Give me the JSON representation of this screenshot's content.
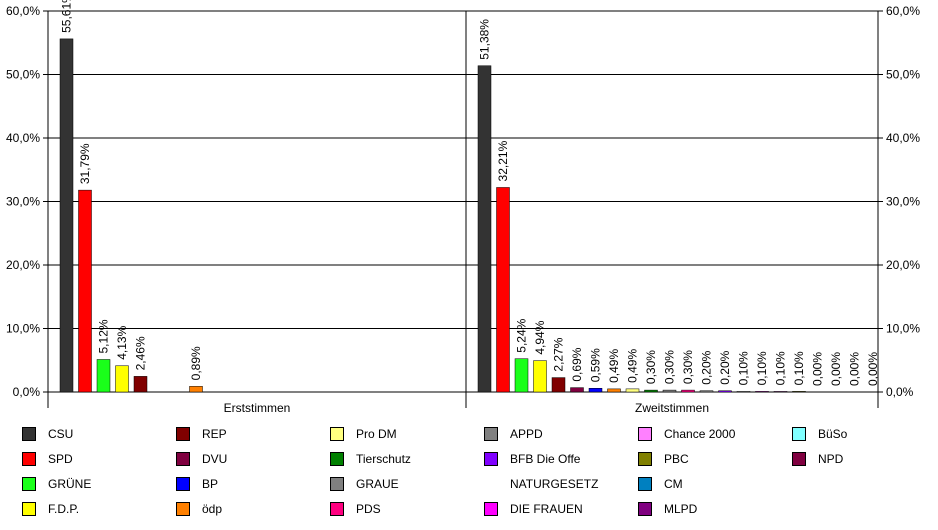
{
  "chart_data": {
    "type": "bar",
    "ylim": [
      0,
      60
    ],
    "y_ticks": [
      "0,0%",
      "10,0%",
      "20,0%",
      "30,0%",
      "40,0%",
      "50,0%",
      "60,0%"
    ],
    "grid": true,
    "legend_position": "bottom",
    "groups": [
      {
        "name": "Erststimmen",
        "bars": [
          {
            "party": "CSU",
            "value": 55.61,
            "label": "55,61%"
          },
          {
            "party": "SPD",
            "value": 31.79,
            "label": "31,79%"
          },
          {
            "party": "GRÜNE",
            "value": 5.12,
            "label": "5,12%"
          },
          {
            "party": "F.D.P.",
            "value": 4.13,
            "label": "4,13%"
          },
          {
            "party": "REP",
            "value": 2.46,
            "label": "2,46%"
          },
          {
            "party": "ödp",
            "value": 0.89,
            "label": "0,89%"
          }
        ]
      },
      {
        "name": "Zweitstimmen",
        "bars": [
          {
            "party": "CSU",
            "value": 51.38,
            "label": "51,38%"
          },
          {
            "party": "SPD",
            "value": 32.21,
            "label": "32,21%"
          },
          {
            "party": "GRÜNE",
            "value": 5.24,
            "label": "5,24%"
          },
          {
            "party": "F.D.P.",
            "value": 4.94,
            "label": "4,94%"
          },
          {
            "party": "REP",
            "value": 2.27,
            "label": "2,27%"
          },
          {
            "party": "DVU",
            "value": 0.69,
            "label": "0,69%"
          },
          {
            "party": "BP",
            "value": 0.59,
            "label": "0,59%"
          },
          {
            "party": "ödp",
            "value": 0.49,
            "label": "0,49%"
          },
          {
            "party": "Pro DM",
            "value": 0.49,
            "label": "0,49%"
          },
          {
            "party": "Tierschutz",
            "value": 0.3,
            "label": "0,30%"
          },
          {
            "party": "GRAUE",
            "value": 0.3,
            "label": "0,30%"
          },
          {
            "party": "PDS",
            "value": 0.3,
            "label": "0,30%"
          },
          {
            "party": "APPD",
            "value": 0.2,
            "label": "0,20%"
          },
          {
            "party": "BFB Die Offe",
            "value": 0.2,
            "label": "0,20%"
          },
          {
            "party": "NATURGESETZ",
            "value": 0.1,
            "label": "0,10%"
          },
          {
            "party": "DIE FRAUEN",
            "value": 0.1,
            "label": "0,10%"
          },
          {
            "party": "Chance 2000",
            "value": 0.1,
            "label": "0,10%"
          },
          {
            "party": "PBC",
            "value": 0.1,
            "label": "0,10%"
          },
          {
            "party": "CM",
            "value": 0.0,
            "label": "0,00%"
          },
          {
            "party": "MLPD",
            "value": 0.0,
            "label": "0,00%"
          },
          {
            "party": "BüSo",
            "value": 0.0,
            "label": "0,00%"
          },
          {
            "party": "NPD",
            "value": 0.0,
            "label": "0,00%"
          }
        ]
      }
    ],
    "legend": [
      {
        "name": "CSU",
        "color": "#333333"
      },
      {
        "name": "SPD",
        "color": "#ff0000"
      },
      {
        "name": "GRÜNE",
        "color": "#1aff1a"
      },
      {
        "name": "F.D.P.",
        "color": "#ffff00"
      },
      {
        "name": "REP",
        "color": "#800000"
      },
      {
        "name": "DVU",
        "color": "#800040"
      },
      {
        "name": "BP",
        "color": "#0000ff"
      },
      {
        "name": "ödp",
        "color": "#ff8000"
      },
      {
        "name": "Pro DM",
        "color": "#ffff80"
      },
      {
        "name": "Tierschutz",
        "color": "#008000"
      },
      {
        "name": "GRAUE",
        "color": "#808080"
      },
      {
        "name": "PDS",
        "color": "#ff0080"
      },
      {
        "name": "APPD",
        "color": "#808080"
      },
      {
        "name": "BFB Die Offe",
        "color": "#8000ff"
      },
      {
        "name": "NATURGESETZ",
        "color": "#ffffff"
      },
      {
        "name": "DIE FRAUEN",
        "color": "#ff00ff"
      },
      {
        "name": "Chance 2000",
        "color": "#ff80ff"
      },
      {
        "name": "PBC",
        "color": "#808000"
      },
      {
        "name": "CM",
        "color": "#0080c0"
      },
      {
        "name": "MLPD",
        "color": "#800080"
      },
      {
        "name": "BüSo",
        "color": "#80ffff"
      },
      {
        "name": "NPD",
        "color": "#800040"
      }
    ]
  }
}
